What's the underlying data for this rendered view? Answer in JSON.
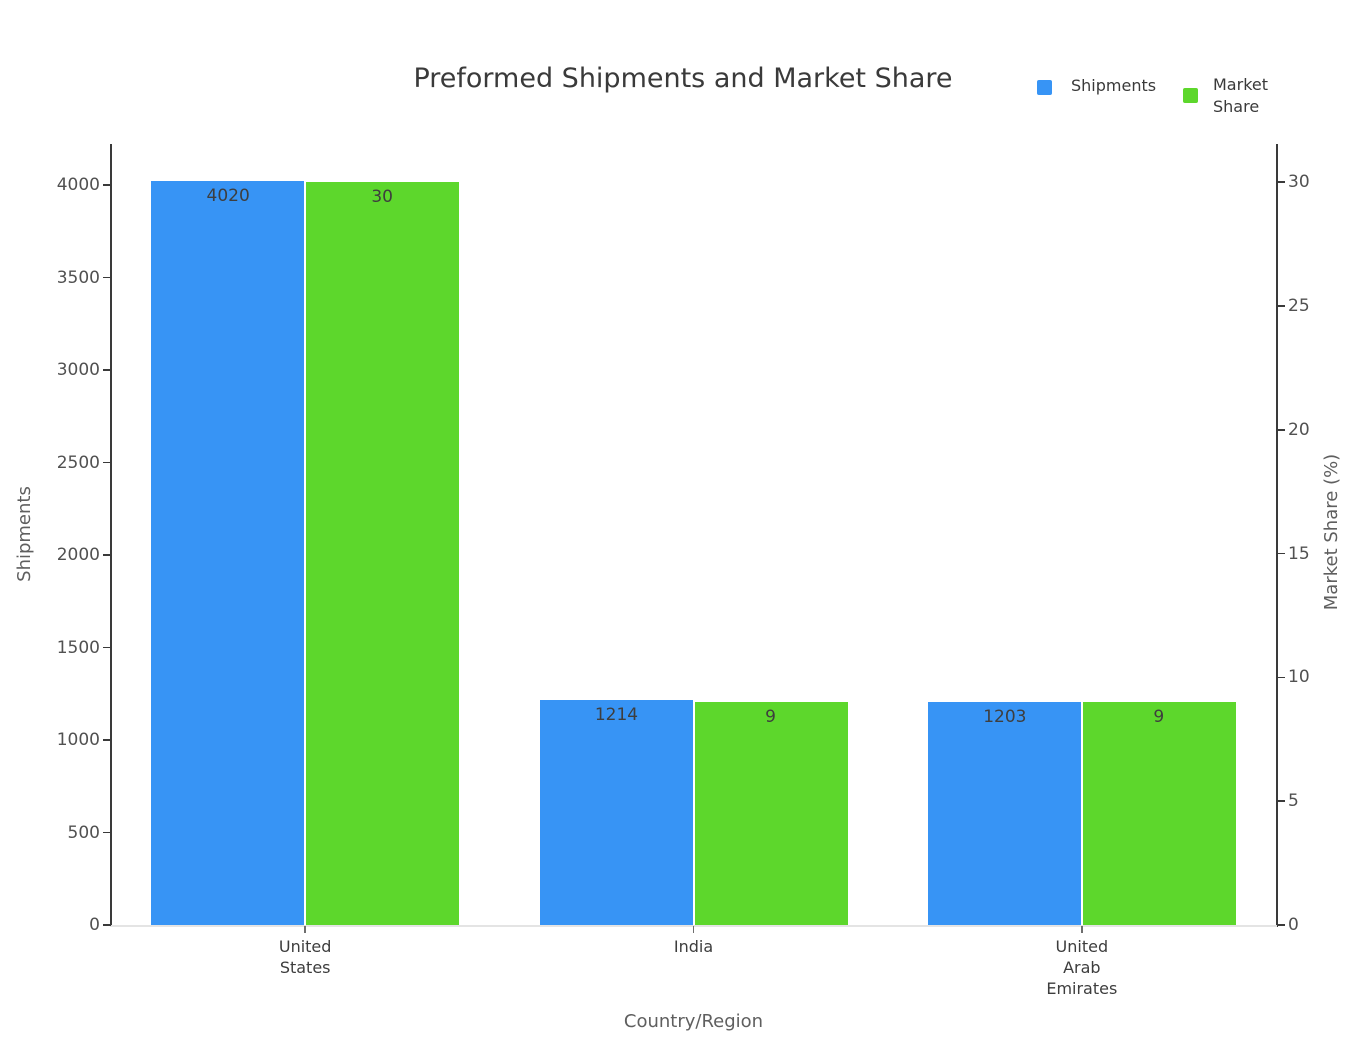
{
  "page": {
    "background": "#ffffff"
  },
  "chart_data": {
    "type": "bar",
    "title": "Preformed Shipments and Market Share",
    "xlabel": "Country/Region",
    "ylabel_left": "Shipments",
    "ylabel_right": "Market Share (%)",
    "categories": [
      "United States",
      "India",
      "United Arab Emirates"
    ],
    "categories_display": [
      "United\nStates",
      "India",
      "United\nArab\nEmirates"
    ],
    "series": [
      {
        "name": "Shipments",
        "axis": "left",
        "color": "#3794F5",
        "values": [
          4020,
          1214,
          1203
        ]
      },
      {
        "name": "Market Share",
        "axis": "right",
        "color": "#5DD72C",
        "values": [
          30,
          9,
          9
        ]
      }
    ],
    "value_labels": true,
    "left_ticks": [
      0,
      500,
      1000,
      1500,
      2000,
      2500,
      3000,
      3500,
      4000
    ],
    "right_ticks": [
      0,
      5,
      10,
      15,
      20,
      25,
      30
    ],
    "ylim_left": [
      0,
      4222
    ],
    "ylim_right": [
      0,
      31.54
    ],
    "grid": false,
    "legend_position": "top-right",
    "legend": [
      {
        "label": "Shipments",
        "color": "#3794F5"
      },
      {
        "label": "Market\nShare",
        "color": "#5DD72C"
      }
    ]
  },
  "colors": {
    "title_text": "#3a3a3a",
    "tick_text": "#515151",
    "axis_title_text": "#5f5f5f",
    "bar_label_text": "#3e3e3e",
    "spine": "#3a3a3a",
    "baseline": "#e4e4e4"
  }
}
